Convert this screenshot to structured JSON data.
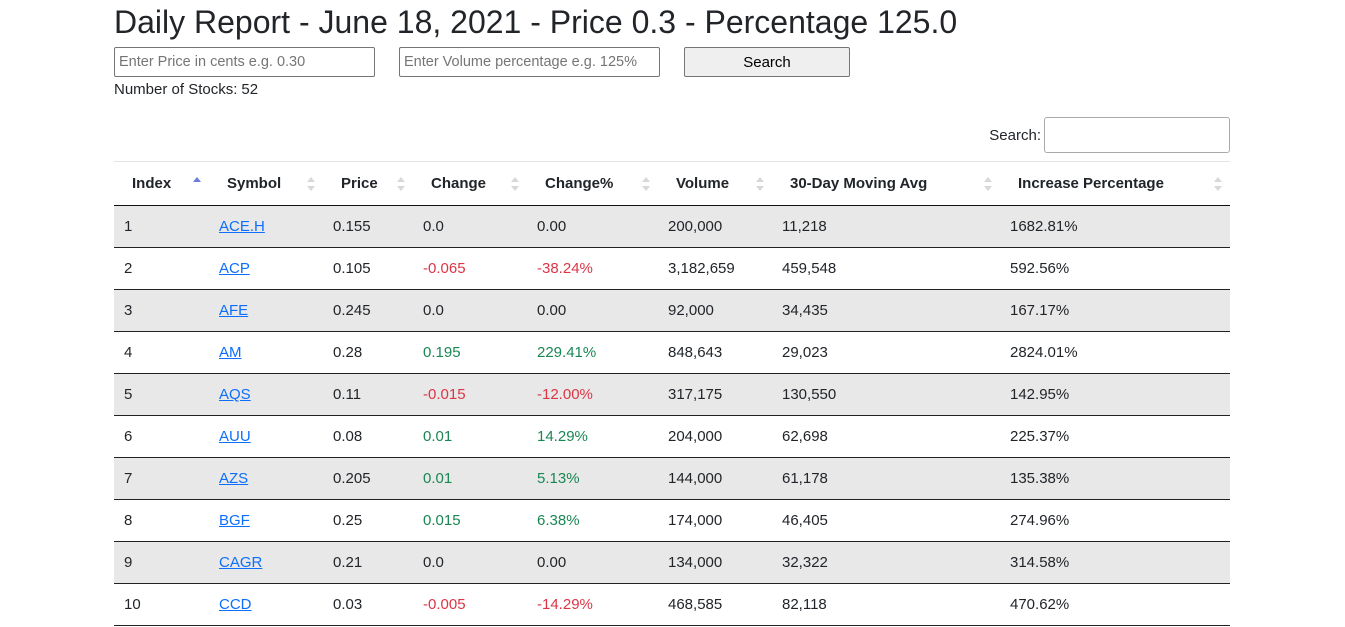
{
  "page": {
    "title": "Daily Report - June 18, 2021 - Price 0.3 - Percentage 125.0"
  },
  "form": {
    "price_placeholder": "Enter Price in cents e.g. 0.30",
    "volume_placeholder": "Enter Volume percentage e.g. 125%",
    "search_label": "Search"
  },
  "summary": {
    "label": "Number of Stocks:",
    "count": "52"
  },
  "table_search": {
    "label": "Search:"
  },
  "table": {
    "columns": [
      "Index",
      "Symbol",
      "Price",
      "Change",
      "Change%",
      "Volume",
      "30-Day Moving Avg",
      "Increase Percentage"
    ],
    "sorted_column": "Index",
    "sort_direction": "ascending",
    "rows": [
      {
        "index": "1",
        "symbol": "ACE.H",
        "price": "0.155",
        "change": "0.0",
        "change_pct": "0.00",
        "volume": "200,000",
        "moving_avg": "11,218",
        "increase_pct": "1682.81%",
        "trend": "flat"
      },
      {
        "index": "2",
        "symbol": "ACP",
        "price": "0.105",
        "change": "-0.065",
        "change_pct": "-38.24%",
        "volume": "3,182,659",
        "moving_avg": "459,548",
        "increase_pct": "592.56%",
        "trend": "down"
      },
      {
        "index": "3",
        "symbol": "AFE",
        "price": "0.245",
        "change": "0.0",
        "change_pct": "0.00",
        "volume": "92,000",
        "moving_avg": "34,435",
        "increase_pct": "167.17%",
        "trend": "flat"
      },
      {
        "index": "4",
        "symbol": "AM",
        "price": "0.28",
        "change": "0.195",
        "change_pct": "229.41%",
        "volume": "848,643",
        "moving_avg": "29,023",
        "increase_pct": "2824.01%",
        "trend": "up"
      },
      {
        "index": "5",
        "symbol": "AQS",
        "price": "0.11",
        "change": "-0.015",
        "change_pct": "-12.00%",
        "volume": "317,175",
        "moving_avg": "130,550",
        "increase_pct": "142.95%",
        "trend": "down"
      },
      {
        "index": "6",
        "symbol": "AUU",
        "price": "0.08",
        "change": "0.01",
        "change_pct": "14.29%",
        "volume": "204,000",
        "moving_avg": "62,698",
        "increase_pct": "225.37%",
        "trend": "up"
      },
      {
        "index": "7",
        "symbol": "AZS",
        "price": "0.205",
        "change": "0.01",
        "change_pct": "5.13%",
        "volume": "144,000",
        "moving_avg": "61,178",
        "increase_pct": "135.38%",
        "trend": "up"
      },
      {
        "index": "8",
        "symbol": "BGF",
        "price": "0.25",
        "change": "0.015",
        "change_pct": "6.38%",
        "volume": "174,000",
        "moving_avg": "46,405",
        "increase_pct": "274.96%",
        "trend": "up"
      },
      {
        "index": "9",
        "symbol": "CAGR",
        "price": "0.21",
        "change": "0.0",
        "change_pct": "0.00",
        "volume": "134,000",
        "moving_avg": "32,322",
        "increase_pct": "314.58%",
        "trend": "flat"
      },
      {
        "index": "10",
        "symbol": "CCD",
        "price": "0.03",
        "change": "-0.005",
        "change_pct": "-14.29%",
        "volume": "468,585",
        "moving_avg": "82,118",
        "increase_pct": "470.62%",
        "trend": "down"
      }
    ]
  },
  "colors": {
    "positive": "#198754",
    "negative": "#dc3545",
    "link": "#0d6efd",
    "stripe": "#e8e8e8",
    "sort_active": "#6c7ae0"
  }
}
